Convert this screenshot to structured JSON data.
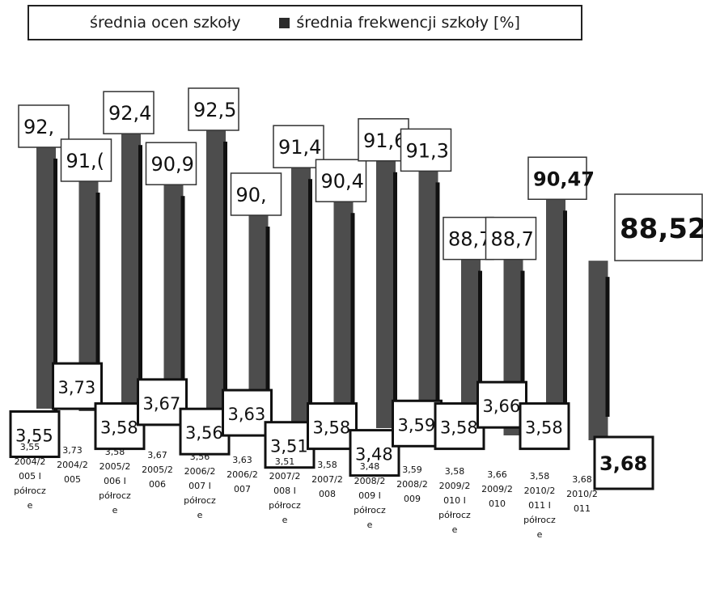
{
  "chart_data": {
    "type": "bar",
    "legend": [
      {
        "label": "średnia ocen szkoły",
        "color": "#ffffff",
        "swatch": false
      },
      {
        "label": "średnia frekwencji szkoły [%]",
        "color": "#2b2b2b",
        "swatch": true
      }
    ],
    "categories": [
      [
        "3,55",
        "2004/2",
        "005 I",
        "półrocz",
        "e"
      ],
      [
        "3,73",
        "2004/2",
        "005"
      ],
      [
        "3,58",
        "2005/2",
        "006 I",
        "półrocz",
        "e"
      ],
      [
        "3,67",
        "2005/2",
        "006"
      ],
      [
        "3,56",
        "2006/2",
        "007 I",
        "półrocz",
        "e"
      ],
      [
        "3,63",
        "2006/2",
        "007"
      ],
      [
        "3,51",
        "2007/2",
        "008 I",
        "półrocz",
        "e"
      ],
      [
        "3,58",
        "2007/2",
        "008"
      ],
      [
        "3,48",
        "2008/2",
        "009 I",
        "półrocz",
        "e"
      ],
      [
        "3,59",
        "2008/2",
        "009"
      ],
      [
        "3,58",
        "2009/2",
        "010 I",
        "półrocz",
        "e"
      ],
      [
        "3,66",
        "2009/2",
        "010"
      ],
      [
        "3,58",
        "2010/2",
        "011 I",
        "półrocz",
        "e"
      ],
      [
        "3,68",
        "2010/2",
        "011"
      ]
    ],
    "series": [
      {
        "name": "średnia ocen szkoły",
        "values": [
          3.55,
          3.73,
          3.58,
          3.67,
          3.56,
          3.63,
          3.51,
          3.58,
          3.48,
          3.59,
          3.58,
          3.66,
          3.58,
          3.68
        ],
        "labels": [
          "3,55",
          "3,73",
          "3,58",
          "3,67",
          "3,56",
          "3,63",
          "3,51",
          "3,58",
          "3,48",
          "3,59",
          "3,58",
          "3,66",
          "3,58",
          "3,68"
        ]
      },
      {
        "name": "średnia frekwencji szkoły [%]",
        "values": [
          92.0,
          91.0,
          92.4,
          90.9,
          92.5,
          90.0,
          91.4,
          90.4,
          91.6,
          91.3,
          88.7,
          88.7,
          90.47,
          88.52
        ],
        "labels": [
          "92,",
          "91,(",
          "92,4",
          "90,9",
          "92,5",
          "90,",
          "91,4",
          "90,4",
          "91,6",
          "91,3",
          "88,7",
          "88,7",
          "90,47",
          "88,52"
        ]
      }
    ],
    "colors": {
      "frekwencja": "#4a4a4a",
      "frekwencja_dark": "#1e1e1e",
      "oceny": "#ffffff",
      "border": "#222222"
    }
  }
}
